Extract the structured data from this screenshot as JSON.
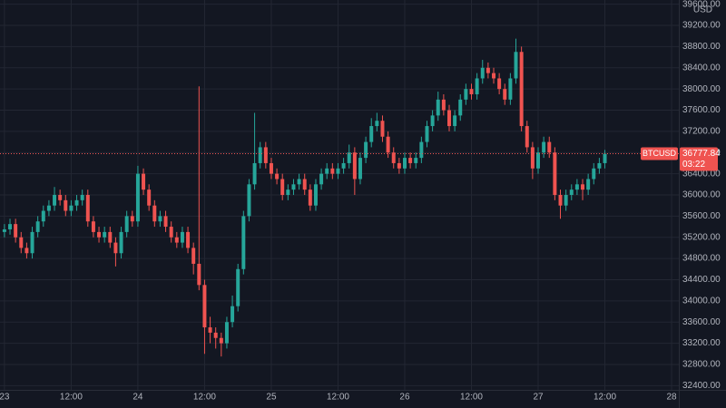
{
  "chart_data": {
    "type": "candlestick",
    "currency": "USD",
    "up_color": "#26a69a",
    "down_color": "#ef5350",
    "grid": true,
    "x": [
      0,
      1,
      2,
      3,
      4,
      5,
      6,
      7,
      8,
      9,
      10,
      11,
      12,
      13,
      14,
      15,
      16,
      17,
      18,
      19,
      20,
      21,
      22,
      23,
      24,
      25,
      26,
      27,
      28,
      29,
      30,
      31,
      32,
      33,
      34,
      35,
      36,
      37,
      38,
      39,
      40,
      41,
      42,
      43,
      44,
      45,
      46,
      47,
      48,
      49,
      50,
      51,
      52,
      53,
      54,
      55,
      56,
      57,
      58,
      59,
      60,
      61,
      62,
      63,
      64,
      65,
      66,
      67,
      68,
      69,
      70,
      71,
      72,
      73,
      74,
      75,
      76,
      77,
      78,
      79,
      80,
      81,
      82,
      83,
      84,
      85,
      86,
      87,
      88,
      89,
      90,
      91,
      92,
      93,
      94,
      95,
      96,
      97,
      98,
      99,
      100,
      101,
      102,
      103,
      104,
      105,
      106,
      107,
      108
    ],
    "open": [
      35300,
      35350,
      35450,
      35200,
      35000,
      34900,
      35300,
      35500,
      35700,
      35800,
      36000,
      35900,
      35700,
      35800,
      35900,
      36000,
      35500,
      35300,
      35200,
      35300,
      35100,
      34900,
      35300,
      35600,
      35500,
      36400,
      36100,
      35800,
      35500,
      35600,
      35400,
      35200,
      35100,
      35300,
      35000,
      34700,
      34300,
      33500,
      33400,
      33300,
      33200,
      33600,
      33900,
      34600,
      35600,
      36200,
      36600,
      36900,
      36600,
      36400,
      36300,
      36000,
      36100,
      36200,
      36300,
      36100,
      35800,
      36200,
      36400,
      36500,
      36400,
      36500,
      36600,
      36800,
      36300,
      36700,
      37000,
      37300,
      37400,
      37100,
      36800,
      36600,
      36500,
      36700,
      36600,
      36700,
      37000,
      37300,
      37500,
      37800,
      37600,
      37300,
      37500,
      37800,
      38000,
      37900,
      38200,
      38400,
      38300,
      38200,
      38000,
      37800,
      38200,
      38700,
      37300,
      36900,
      36500,
      36800,
      37000,
      36800,
      36000,
      35800,
      36000,
      36100,
      36200,
      36100,
      36300,
      36500,
      36600
    ],
    "high": [
      35450,
      35550,
      35550,
      35300,
      35100,
      35400,
      35600,
      35800,
      35900,
      36150,
      36100,
      36000,
      35900,
      36000,
      36100,
      36100,
      35600,
      35400,
      35400,
      35400,
      35200,
      35400,
      35700,
      35700,
      36550,
      36500,
      36200,
      35900,
      35700,
      35700,
      35500,
      35300,
      35400,
      35400,
      35100,
      38050,
      34400,
      33700,
      33500,
      33400,
      33700,
      34100,
      34700,
      35700,
      36300,
      37550,
      37000,
      37000,
      36700,
      36500,
      36400,
      36200,
      36300,
      36400,
      36400,
      36200,
      36300,
      36500,
      36600,
      36600,
      36600,
      36700,
      36950,
      36900,
      36800,
      37100,
      37450,
      37550,
      37500,
      37200,
      36900,
      36700,
      36800,
      36800,
      36800,
      37100,
      37400,
      37600,
      37950,
      37900,
      37700,
      37600,
      37900,
      38100,
      38100,
      38300,
      38550,
      38500,
      38400,
      38300,
      38100,
      38300,
      38950,
      38800,
      37400,
      37000,
      36900,
      37100,
      37100,
      36900,
      36100,
      36100,
      36200,
      36300,
      36300,
      36400,
      36600,
      36700,
      36850
    ],
    "low": [
      35200,
      35250,
      35100,
      34900,
      34800,
      34800,
      35200,
      35400,
      35600,
      35700,
      35800,
      35600,
      35600,
      35700,
      35800,
      35400,
      35200,
      35100,
      35100,
      35000,
      34650,
      34800,
      35200,
      35400,
      35400,
      36000,
      35700,
      35400,
      35400,
      35300,
      35100,
      35000,
      35000,
      34900,
      34500,
      34200,
      33000,
      33200,
      33100,
      32950,
      33100,
      33500,
      33800,
      34500,
      35500,
      36100,
      36500,
      36500,
      36300,
      36200,
      35900,
      35900,
      36000,
      36100,
      36000,
      35700,
      35700,
      36100,
      36300,
      36300,
      36300,
      36400,
      36500,
      36000,
      36200,
      36600,
      36900,
      37200,
      37000,
      36700,
      36500,
      36400,
      36400,
      36500,
      36500,
      36600,
      36900,
      37200,
      37400,
      37500,
      37200,
      37200,
      37400,
      37700,
      37800,
      37800,
      38100,
      38200,
      38100,
      37900,
      37700,
      37700,
      38100,
      37200,
      36800,
      36300,
      36400,
      36700,
      36700,
      35900,
      35550,
      35700,
      35900,
      36000,
      35900,
      36000,
      36200,
      36400,
      36500
    ],
    "close": [
      35350,
      35450,
      35200,
      35000,
      34900,
      35300,
      35500,
      35700,
      35800,
      36000,
      35900,
      35700,
      35800,
      35900,
      36000,
      35500,
      35300,
      35200,
      35300,
      35100,
      34900,
      35300,
      35600,
      35500,
      36400,
      36100,
      35800,
      35500,
      35600,
      35400,
      35200,
      35100,
      35300,
      35000,
      34700,
      34300,
      33500,
      33400,
      33300,
      33200,
      33600,
      33900,
      34600,
      35600,
      36200,
      36600,
      36900,
      36600,
      36400,
      36300,
      36000,
      36100,
      36200,
      36300,
      36100,
      35800,
      36200,
      36400,
      36500,
      36400,
      36500,
      36600,
      36800,
      36300,
      36700,
      37000,
      37300,
      37400,
      37100,
      36800,
      36600,
      36500,
      36700,
      36600,
      36700,
      37000,
      37300,
      37500,
      37800,
      37600,
      37300,
      37500,
      37800,
      38000,
      37900,
      38200,
      38400,
      38300,
      38200,
      38000,
      37800,
      38200,
      38700,
      37300,
      36900,
      36500,
      36800,
      37000,
      36800,
      36000,
      35800,
      36000,
      36100,
      36200,
      36100,
      36300,
      36500,
      36600,
      36777.84
    ],
    "xlim": [
      -0.8,
      121.3
    ],
    "xticks": [
      {
        "value": 0,
        "label": "23"
      },
      {
        "value": 12,
        "label": "12:00"
      },
      {
        "value": 24,
        "label": "24"
      },
      {
        "value": 36,
        "label": "12:00"
      },
      {
        "value": 48,
        "label": "25"
      },
      {
        "value": 60,
        "label": "12:00"
      },
      {
        "value": 72,
        "label": "26"
      },
      {
        "value": 84,
        "label": "12:00"
      },
      {
        "value": 96,
        "label": "27"
      },
      {
        "value": 108,
        "label": "12:00"
      },
      {
        "value": 120,
        "label": "28"
      }
    ],
    "ylim": [
      32320,
      39680
    ],
    "yticks": [
      {
        "value": 32400,
        "label": "32400.00"
      },
      {
        "value": 32800,
        "label": "32800.00"
      },
      {
        "value": 33200,
        "label": "33200.00"
      },
      {
        "value": 33600,
        "label": "33600.00"
      },
      {
        "value": 34000,
        "label": "34000.00"
      },
      {
        "value": 34400,
        "label": "34400.00"
      },
      {
        "value": 34800,
        "label": "34800.00"
      },
      {
        "value": 35200,
        "label": "35200.00"
      },
      {
        "value": 35600,
        "label": "35600.00"
      },
      {
        "value": 36000,
        "label": "36000.00"
      },
      {
        "value": 36400,
        "label": "36400.00"
      },
      {
        "value": 36800,
        "label": "36800.00"
      },
      {
        "value": 37200,
        "label": "37200.00"
      },
      {
        "value": 37600,
        "label": "37600.00"
      },
      {
        "value": 38000,
        "label": "38000.00"
      },
      {
        "value": 38400,
        "label": "38400.00"
      },
      {
        "value": 38800,
        "label": "38800.00"
      },
      {
        "value": 39200,
        "label": "39200.00"
      },
      {
        "value": 39600,
        "label": "39600.00"
      }
    ],
    "last_price": {
      "symbol": "BTCUSD",
      "value": 36777.84,
      "label": "36777.84",
      "countdown": "03:22",
      "color": "#ef5350"
    }
  }
}
